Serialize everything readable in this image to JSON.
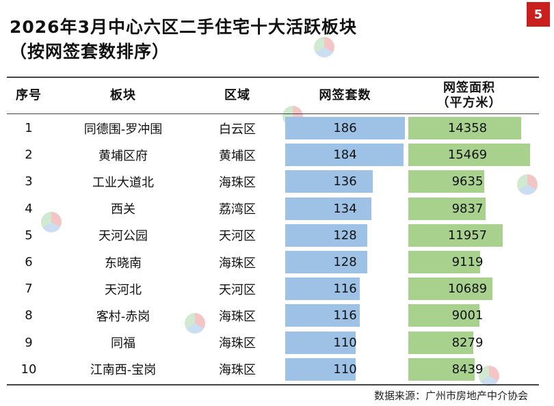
{
  "page_number": "5",
  "title_line1": "2026年3月中心六区二手住宅十大活跃板块",
  "title_line2": "（按网签套数排序）",
  "headers": {
    "rank": "序号",
    "block": "板块",
    "district": "区域",
    "units": "网签套数",
    "area_line1": "网签面积",
    "area_line2": "（平方米）"
  },
  "source": "数据来源：广州市房地产中介协会",
  "colors": {
    "units_bar": "#9dc2e6",
    "area_bar": "#a9d18e",
    "page_badge": "#c91f1f"
  },
  "chart_data": {
    "type": "table",
    "columns": [
      "序号",
      "板块",
      "区域",
      "网签套数",
      "网签面积（平方米）"
    ],
    "rows": [
      {
        "rank": "1",
        "block": "同德围-罗冲围",
        "district": "白云区",
        "units": 186,
        "area": 14358
      },
      {
        "rank": "2",
        "block": "黄埔区府",
        "district": "黄埔区",
        "units": 184,
        "area": 15469
      },
      {
        "rank": "3",
        "block": "工业大道北",
        "district": "海珠区",
        "units": 136,
        "area": 9635
      },
      {
        "rank": "4",
        "block": "西关",
        "district": "荔湾区",
        "units": 134,
        "area": 9837
      },
      {
        "rank": "5",
        "block": "天河公园",
        "district": "天河区",
        "units": 128,
        "area": 11957
      },
      {
        "rank": "6",
        "block": "东晓南",
        "district": "海珠区",
        "units": 128,
        "area": 9119
      },
      {
        "rank": "7",
        "block": "天河北",
        "district": "天河区",
        "units": 116,
        "area": 10689
      },
      {
        "rank": "8",
        "block": "客村-赤岗",
        "district": "海珠区",
        "units": 116,
        "area": 9001
      },
      {
        "rank": "9",
        "block": "同福",
        "district": "海珠区",
        "units": 110,
        "area": 8279
      },
      {
        "rank": "10",
        "block": "江南西-宝岗",
        "district": "海珠区",
        "units": 110,
        "area": 8439
      }
    ],
    "units_max": 186,
    "area_max": 15469
  }
}
